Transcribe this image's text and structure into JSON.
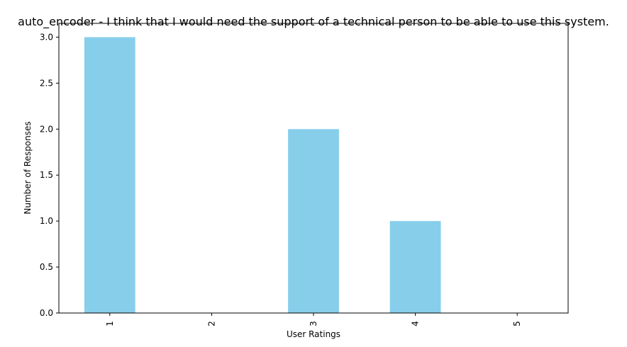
{
  "chart_data": {
    "type": "bar",
    "title": "auto_encoder - I think that I would need the support of a technical person to be able to use this system.",
    "xlabel": "User Ratings",
    "ylabel": "Number of Responses",
    "categories": [
      "1",
      "2",
      "3",
      "4",
      "5"
    ],
    "values": [
      3,
      0,
      2,
      1,
      0
    ],
    "ylim": [
      0,
      3.15
    ],
    "yticks": [
      "0.0",
      "0.5",
      "1.0",
      "1.5",
      "2.0",
      "2.5",
      "3.0"
    ],
    "bar_color": "#87CEEB",
    "grid": false,
    "legend": "none"
  }
}
